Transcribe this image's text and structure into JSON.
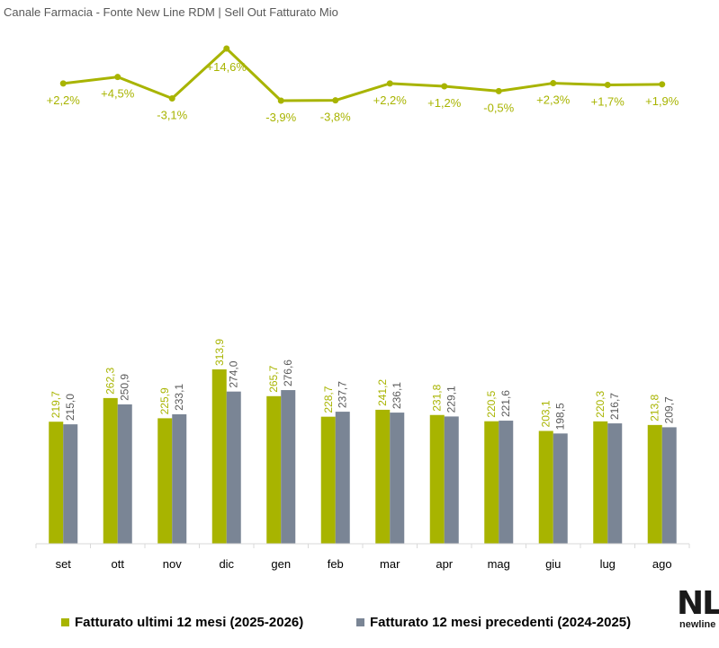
{
  "title": "Canale Farmacia - Fonte New Line RDM | Sell Out Fatturato Mio",
  "colors": {
    "current": "#a8b400",
    "previous": "#7a8595",
    "growth": "#a8b400",
    "axis": "#d9d9d9"
  },
  "logo": {
    "mark": "NL",
    "text": "newline"
  },
  "chart_data": {
    "type": "bar",
    "categories": [
      "set",
      "ott",
      "nov",
      "dic",
      "gen",
      "feb",
      "mar",
      "apr",
      "mag",
      "giu",
      "lug",
      "ago"
    ],
    "series": [
      {
        "name": "Fatturato ultimi 12 mesi (2025-2026)",
        "values": [
          219.7,
          262.3,
          225.9,
          313.9,
          265.7,
          228.7,
          241.2,
          231.8,
          220.5,
          203.1,
          220.3,
          213.8
        ],
        "labels": [
          "219,7",
          "262,3",
          "225,9",
          "313,9",
          "265,7",
          "228,7",
          "241,2",
          "231,8",
          "220,5",
          "203,1",
          "220,3",
          "213,8"
        ]
      },
      {
        "name": "Fatturato 12 mesi precedenti (2024-2025)",
        "values": [
          215.0,
          250.9,
          233.1,
          274.0,
          276.6,
          237.7,
          236.1,
          229.1,
          221.6,
          198.5,
          216.7,
          209.7
        ],
        "labels": [
          "215,0",
          "250,9",
          "233,1",
          "274,0",
          "276,6",
          "237,7",
          "236,1",
          "229,1",
          "221,6",
          "198,5",
          "216,7",
          "209,7"
        ]
      }
    ],
    "growth": {
      "type": "line",
      "values": [
        2.2,
        4.5,
        -3.1,
        14.6,
        -3.9,
        -3.8,
        2.2,
        1.2,
        -0.5,
        2.3,
        1.7,
        1.9
      ],
      "labels": [
        "+2,2%",
        "+4,5%",
        "-3,1%",
        "+14,6%",
        "-3,9%",
        "-3,8%",
        "+2,2%",
        "+1,2%",
        "-0,5%",
        "+2,3%",
        "+1,7%",
        "+1,9%"
      ]
    },
    "ylim": [
      0,
      313.9
    ],
    "grid": false,
    "legend": "bottom"
  }
}
